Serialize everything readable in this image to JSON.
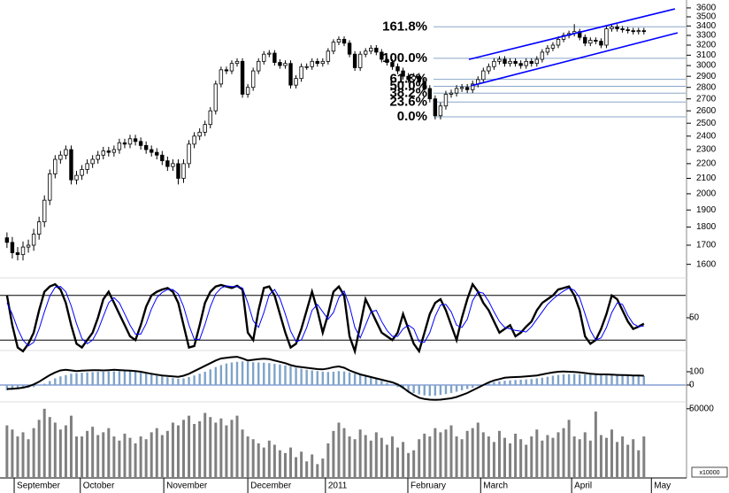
{
  "chart_data": [
    {
      "type": "candlestick",
      "log": true,
      "xlim": [
        -1.3,
        126.8
      ],
      "ylim": [
        1550,
        3650
      ],
      "yticks": [
        1600,
        1700,
        1800,
        1900,
        2000,
        2100,
        2200,
        2300,
        2400,
        2500,
        2600,
        2700,
        2800,
        2900,
        3000,
        3100,
        3200,
        3300,
        3400,
        3500,
        3600
      ],
      "up_color": "#ffffff",
      "down_color": "#000000",
      "fib_color": "#8aa6c8",
      "trendline_color": "#0000ff",
      "open": [
        1740,
        1715,
        1660,
        1650,
        1690,
        1700,
        1760,
        1830,
        1960,
        2130,
        2230,
        2260,
        2300,
        2090,
        2120,
        2160,
        2200,
        2230,
        2260,
        2290,
        2280,
        2300,
        2350,
        2340,
        2380,
        2360,
        2330,
        2300,
        2280,
        2260,
        2220,
        2180,
        2200,
        2100,
        2200,
        2340,
        2400,
        2430,
        2490,
        2600,
        2830,
        2960,
        2950,
        3020,
        3040,
        2740,
        2800,
        2950,
        3040,
        3110,
        3120,
        3030,
        3000,
        3020,
        2820,
        2880,
        2990,
        2990,
        3040,
        3020,
        3040,
        3140,
        3230,
        3260,
        3220,
        3110,
        2980,
        3110,
        3140,
        3170,
        3130,
        3060,
        3030,
        2990,
        2950,
        2900,
        2870,
        2900,
        2850,
        2790,
        2700,
        2560,
        2640,
        2740,
        2750,
        2790,
        2800,
        2780,
        2830,
        2870,
        2950,
        2990,
        3040,
        3060,
        3020,
        3040,
        3020,
        3000,
        3040,
        3020,
        3060,
        3130,
        3170,
        3200,
        3260,
        3300,
        3320,
        3340,
        3280,
        3220,
        3250,
        3240,
        3200,
        3370,
        3390,
        3370,
        3360,
        3350,
        3340,
        3350
      ],
      "high": [
        1770,
        1745,
        1690,
        1720,
        1730,
        1790,
        1860,
        1990,
        2160,
        2260,
        2290,
        2330,
        2330,
        2150,
        2190,
        2230,
        2260,
        2290,
        2320,
        2320,
        2330,
        2380,
        2380,
        2410,
        2410,
        2390,
        2360,
        2330,
        2310,
        2290,
        2250,
        2230,
        2230,
        2230,
        2370,
        2430,
        2460,
        2520,
        2630,
        2860,
        2990,
        2990,
        3050,
        3070,
        3070,
        2830,
        2980,
        3070,
        3140,
        3150,
        3150,
        3060,
        3050,
        3050,
        2910,
        3020,
        3020,
        3070,
        3070,
        3070,
        3170,
        3260,
        3290,
        3290,
        3250,
        3140,
        3140,
        3170,
        3200,
        3200,
        3160,
        3090,
        3060,
        3020,
        2980,
        2930,
        2930,
        2930,
        2880,
        2820,
        2730,
        2670,
        2770,
        2780,
        2820,
        2830,
        2830,
        2860,
        2900,
        2980,
        3020,
        3070,
        3090,
        3090,
        3070,
        3070,
        3050,
        3070,
        3070,
        3090,
        3160,
        3200,
        3230,
        3290,
        3330,
        3350,
        3420,
        3370,
        3310,
        3280,
        3280,
        3270,
        3400,
        3420,
        3420,
        3400,
        3390,
        3380,
        3380,
        3380
      ],
      "low": [
        1685,
        1630,
        1620,
        1620,
        1660,
        1670,
        1730,
        1800,
        1930,
        2100,
        2200,
        2230,
        2060,
        2060,
        2090,
        2130,
        2170,
        2200,
        2230,
        2250,
        2250,
        2270,
        2310,
        2310,
        2330,
        2300,
        2270,
        2250,
        2230,
        2190,
        2150,
        2150,
        2060,
        2070,
        2170,
        2310,
        2370,
        2400,
        2460,
        2570,
        2800,
        2920,
        2920,
        2990,
        2710,
        2710,
        2770,
        2920,
        3010,
        3080,
        3000,
        2970,
        2970,
        2790,
        2790,
        2850,
        2960,
        2960,
        2990,
        2990,
        3010,
        3110,
        3200,
        3190,
        3080,
        2950,
        2950,
        3080,
        3110,
        3100,
        3030,
        3000,
        2960,
        2920,
        2870,
        2840,
        2840,
        2820,
        2760,
        2670,
        2530,
        2530,
        2610,
        2710,
        2720,
        2760,
        2750,
        2750,
        2800,
        2840,
        2920,
        2960,
        3010,
        2990,
        2990,
        2990,
        2970,
        2970,
        2990,
        2990,
        3030,
        3100,
        3140,
        3170,
        3230,
        3270,
        3290,
        3250,
        3190,
        3190,
        3210,
        3170,
        3170,
        3340,
        3340,
        3330,
        3320,
        3310,
        3310,
        3310
      ],
      "close": [
        1715,
        1660,
        1650,
        1690,
        1700,
        1760,
        1830,
        1960,
        2130,
        2230,
        2260,
        2300,
        2090,
        2120,
        2160,
        2200,
        2230,
        2260,
        2290,
        2280,
        2300,
        2350,
        2340,
        2380,
        2360,
        2330,
        2300,
        2280,
        2260,
        2220,
        2180,
        2200,
        2100,
        2200,
        2340,
        2400,
        2430,
        2490,
        2600,
        2830,
        2960,
        2950,
        3020,
        3040,
        2740,
        2800,
        2950,
        3040,
        3110,
        3120,
        3030,
        3000,
        3020,
        2820,
        2880,
        2990,
        2990,
        3040,
        3020,
        3040,
        3140,
        3230,
        3260,
        3220,
        3110,
        2980,
        3110,
        3140,
        3170,
        3130,
        3060,
        3030,
        2990,
        2950,
        2900,
        2870,
        2900,
        2850,
        2790,
        2700,
        2560,
        2640,
        2740,
        2750,
        2790,
        2800,
        2780,
        2830,
        2870,
        2950,
        2990,
        3040,
        3060,
        3020,
        3040,
        3020,
        3000,
        3040,
        3020,
        3060,
        3130,
        3170,
        3200,
        3260,
        3300,
        3320,
        3340,
        3280,
        3220,
        3250,
        3240,
        3200,
        3370,
        3390,
        3370,
        3360,
        3350,
        3340,
        3350,
        3340
      ],
      "fib_levels": [
        {
          "value": 3391,
          "label": "161.8%"
        },
        {
          "value": 3070,
          "label": "100.0%"
        },
        {
          "value": 2872,
          "label": "61.8%"
        },
        {
          "value": 2810,
          "label": "50.0%"
        },
        {
          "value": 2749,
          "label": "38.2%"
        },
        {
          "value": 2673,
          "label": "23.6%"
        },
        {
          "value": 2551,
          "label": "0.0%"
        }
      ],
      "trendlines": [
        {
          "x": [
            86.3,
            124.8
          ],
          "values": [
            3059,
            3589
          ]
        },
        {
          "x": [
            86.8,
            125.3
          ],
          "values": [
            2815,
            3327
          ]
        }
      ]
    },
    {
      "type": "line",
      "xlim": [
        -1.3,
        126.8
      ],
      "ylim": [
        0,
        100
      ],
      "yticks": [
        50
      ],
      "levels": [
        20,
        80
      ],
      "series": [
        {
          "color": "#000000",
          "values": [
            80,
            40,
            10,
            5,
            15,
            30,
            60,
            85,
            92,
            95,
            88,
            70,
            40,
            15,
            10,
            20,
            30,
            50,
            75,
            85,
            70,
            55,
            40,
            25,
            20,
            40,
            65,
            80,
            85,
            88,
            90,
            85,
            70,
            40,
            10,
            12,
            40,
            70,
            85,
            92,
            94,
            92,
            90,
            93,
            88,
            30,
            20,
            60,
            90,
            92,
            80,
            55,
            30,
            10,
            15,
            35,
            60,
            85,
            60,
            30,
            55,
            85,
            92,
            80,
            25,
            5,
            40,
            75,
            60,
            45,
            30,
            25,
            20,
            30,
            55,
            35,
            15,
            5,
            30,
            55,
            70,
            75,
            60,
            40,
            20,
            50,
            75,
            95,
            85,
            70,
            60,
            45,
            30,
            35,
            40,
            25,
            30,
            38,
            45,
            60,
            70,
            75,
            80,
            88,
            90,
            92,
            80,
            60,
            25,
            15,
            20,
            35,
            55,
            80,
            75,
            60,
            45,
            35,
            38,
            42
          ]
        },
        {
          "color": "#0000ff",
          "values": [
            70,
            55,
            35,
            20,
            12,
            17,
            35,
            58,
            79,
            91,
            92,
            85,
            66,
            42,
            22,
            15,
            20,
            33,
            52,
            70,
            77,
            70,
            55,
            40,
            28,
            28,
            42,
            62,
            77,
            84,
            88,
            88,
            82,
            65,
            40,
            21,
            21,
            41,
            65,
            82,
            90,
            93,
            92,
            92,
            90,
            70,
            46,
            37,
            57,
            81,
            88,
            76,
            55,
            32,
            18,
            20,
            37,
            60,
            68,
            58,
            48,
            57,
            77,
            86,
            66,
            37,
            23,
            40,
            58,
            60,
            45,
            33,
            25,
            25,
            35,
            40,
            35,
            18,
            17,
            30,
            52,
            67,
            68,
            58,
            40,
            37,
            48,
            73,
            85,
            83,
            72,
            58,
            45,
            37,
            35,
            33,
            32,
            31,
            38,
            48,
            58,
            68,
            75,
            81,
            86,
            90,
            87,
            77,
            55,
            33,
            20,
            23,
            37,
            57,
            70,
            68,
            53,
            42,
            38,
            39
          ]
        }
      ]
    },
    {
      "type": "macd",
      "xlim": [
        -1.3,
        126.8
      ],
      "ylim": [
        -150,
        250
      ],
      "yticks": [
        0,
        100
      ],
      "zero_color": "#4a6fc0",
      "bars": {
        "color": "#7fa3c9",
        "values": [
          -40,
          -35,
          -30,
          -25,
          -20,
          -15,
          -5,
          10,
          30,
          50,
          65,
          75,
          85,
          90,
          92,
          95,
          98,
          100,
          100,
          102,
          103,
          105,
          105,
          104,
          100,
          95,
          88,
          80,
          72,
          65,
          58,
          52,
          48,
          50,
          60,
          72,
          85,
          100,
          118,
          135,
          150,
          162,
          170,
          175,
          178,
          175,
          172,
          170,
          168,
          165,
          160,
          155,
          148,
          140,
          130,
          122,
          115,
          110,
          105,
          100,
          98,
          100,
          105,
          102,
          95,
          85,
          75,
          65,
          55,
          45,
          30,
          15,
          0,
          -15,
          -30,
          -45,
          -60,
          -70,
          -78,
          -82,
          -80,
          -75,
          -68,
          -60,
          -50,
          -40,
          -30,
          -20,
          -8,
          5,
          15,
          22,
          28,
          32,
          35,
          38,
          40,
          42,
          45,
          50,
          55,
          62,
          70,
          76,
          80,
          82,
          83,
          82,
          80,
          78,
          76,
          75,
          74,
          73,
          72,
          71,
          70,
          70,
          69,
          68
        ]
      },
      "line": {
        "color": "#000000",
        "values": [
          -30,
          -28,
          -25,
          -20,
          -10,
          5,
          25,
          50,
          75,
          95,
          110,
          115,
          110,
          105,
          108,
          110,
          112,
          112,
          110,
          112,
          115,
          113,
          110,
          108,
          105,
          100,
          92,
          85,
          78,
          72,
          68,
          65,
          62,
          70,
          85,
          105,
          125,
          145,
          165,
          185,
          200,
          205,
          210,
          213,
          200,
          185,
          190,
          195,
          198,
          195,
          185,
          175,
          165,
          150,
          140,
          135,
          130,
          125,
          120,
          118,
          125,
          135,
          140,
          130,
          110,
          95,
          80,
          70,
          60,
          50,
          40,
          30,
          20,
          5,
          -20,
          -50,
          -75,
          -95,
          -105,
          -110,
          -112,
          -110,
          -105,
          -100,
          -90,
          -75,
          -60,
          -40,
          -20,
          0,
          20,
          35,
          45,
          55,
          58,
          60,
          62,
          65,
          68,
          72,
          80,
          88,
          95,
          100,
          102,
          100,
          98,
          95,
          90,
          85,
          82,
          80,
          80,
          78,
          76,
          75,
          74,
          72,
          72,
          70
        ]
      }
    },
    {
      "type": "bar",
      "xlim": [
        -1.3,
        126.8
      ],
      "ylim": [
        0,
        55000
      ],
      "yticks": [
        50000
      ],
      "color": "#808080",
      "unit_label": "x10000",
      "values": [
        38000,
        35000,
        30000,
        33000,
        28000,
        36000,
        42000,
        50000,
        44000,
        40000,
        35000,
        38000,
        45000,
        30000,
        30000,
        34000,
        37000,
        31000,
        33000,
        36000,
        30000,
        27000,
        32000,
        29000,
        25000,
        30000,
        28000,
        33000,
        36000,
        31000,
        34000,
        40000,
        38000,
        42000,
        45000,
        39000,
        41000,
        47000,
        44000,
        40000,
        43000,
        38000,
        42000,
        45000,
        35000,
        30000,
        28000,
        25000,
        22000,
        27000,
        24000,
        20000,
        18000,
        22000,
        15000,
        19000,
        12000,
        17000,
        10000,
        14000,
        25000,
        34000,
        40000,
        36000,
        30000,
        28000,
        35000,
        31000,
        27000,
        33000,
        29000,
        24000,
        30000,
        22000,
        26000,
        18000,
        20000,
        28000,
        32000,
        30000,
        36000,
        33000,
        35000,
        38000,
        30000,
        28000,
        34000,
        36000,
        40000,
        33000,
        30000,
        26000,
        34000,
        29000,
        25000,
        32000,
        28000,
        24000,
        30000,
        35000,
        27000,
        31000,
        29000,
        33000,
        36000,
        42000,
        30000,
        28000,
        33000,
        27000,
        48000,
        31000,
        29000,
        35000,
        26000,
        30000,
        24000,
        28000,
        20000,
        30000
      ],
      "xticks": [
        {
          "value": 1.35,
          "label": "September"
        },
        {
          "value": 13.7,
          "label": "October"
        },
        {
          "value": 29.3,
          "label": "November"
        },
        {
          "value": 45.0,
          "label": "December"
        },
        {
          "value": 59.5,
          "label": "2011"
        },
        {
          "value": 74.9,
          "label": "February"
        },
        {
          "value": 88.5,
          "label": "March"
        },
        {
          "value": 105.5,
          "label": "April"
        },
        {
          "value": 120.4,
          "label": "May"
        }
      ]
    }
  ]
}
